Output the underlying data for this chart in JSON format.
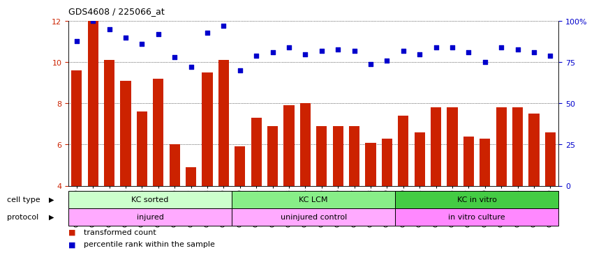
{
  "title": "GDS4608 / 225066_at",
  "samples": [
    "GSM753020",
    "GSM753021",
    "GSM753022",
    "GSM753023",
    "GSM753024",
    "GSM753025",
    "GSM753026",
    "GSM753027",
    "GSM753028",
    "GSM753029",
    "GSM753010",
    "GSM753011",
    "GSM753012",
    "GSM753013",
    "GSM753014",
    "GSM753015",
    "GSM753016",
    "GSM753017",
    "GSM753018",
    "GSM753019",
    "GSM753030",
    "GSM753031",
    "GSM753032",
    "GSM753035",
    "GSM753037",
    "GSM753039",
    "GSM753042",
    "GSM753044",
    "GSM753047",
    "GSM753049"
  ],
  "bar_values": [
    9.6,
    12.0,
    10.1,
    9.1,
    7.6,
    9.2,
    6.0,
    4.9,
    9.5,
    10.1,
    5.9,
    7.3,
    6.9,
    7.9,
    8.0,
    6.9,
    6.9,
    6.9,
    6.1,
    6.3,
    7.4,
    6.6,
    7.8,
    7.8,
    6.4,
    6.3,
    7.8,
    7.8,
    7.5,
    6.6
  ],
  "dot_values": [
    88,
    100,
    95,
    90,
    86,
    92,
    78,
    72,
    93,
    97,
    70,
    79,
    81,
    84,
    80,
    82,
    83,
    82,
    74,
    76,
    82,
    80,
    84,
    84,
    81,
    75,
    84,
    83,
    81,
    79
  ],
  "ylim_left": [
    4,
    12
  ],
  "ylim_right": [
    0,
    100
  ],
  "yticks_left": [
    4,
    6,
    8,
    10,
    12
  ],
  "yticks_right": [
    0,
    25,
    50,
    75,
    100
  ],
  "bar_color": "#cc2200",
  "dot_color": "#0000cc",
  "cell_type_groups": [
    {
      "label": "KC sorted",
      "start": 0,
      "end": 10,
      "color": "#ccffcc"
    },
    {
      "label": "KC LCM",
      "start": 10,
      "end": 20,
      "color": "#88ee88"
    },
    {
      "label": "KC in vitro",
      "start": 20,
      "end": 30,
      "color": "#44cc44"
    }
  ],
  "protocol_groups": [
    {
      "label": "injured",
      "start": 0,
      "end": 10,
      "color": "#ffaaff"
    },
    {
      "label": "uninjured control",
      "start": 10,
      "end": 20,
      "color": "#ffaaff"
    },
    {
      "label": "in vitro culture",
      "start": 20,
      "end": 30,
      "color": "#ff88ff"
    }
  ],
  "legend_items": [
    {
      "label": "transformed count",
      "color": "#cc2200"
    },
    {
      "label": "percentile rank within the sample",
      "color": "#0000cc"
    }
  ]
}
